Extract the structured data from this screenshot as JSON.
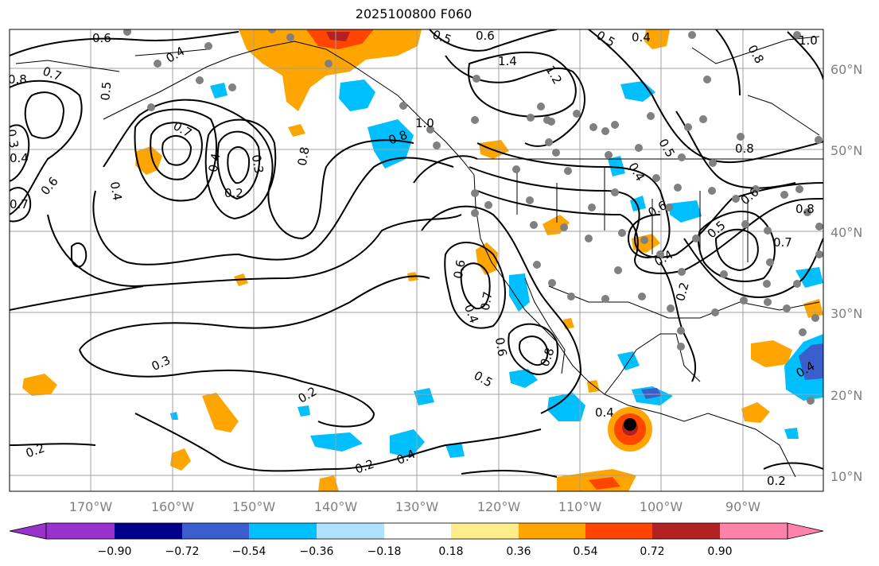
{
  "title": "2025100800 F060",
  "latitude_labels": [
    "60°N",
    "50°N",
    "40°N",
    "30°N",
    "20°N",
    "10°N"
  ],
  "longitude_labels": [
    "170°W",
    "160°W",
    "150°W",
    "140°W",
    "130°W",
    "120°W",
    "110°W",
    "100°W",
    "90°W"
  ],
  "colorbar": {
    "colors": [
      "#9932cc",
      "#00008b",
      "#3a5fcd",
      "#00bfff",
      "#b0e2ff",
      "#ffffff",
      "#ffec8b",
      "#ffa500",
      "#ff4500",
      "#b22222",
      "#ff82ab"
    ],
    "tick_labels": [
      "−0.90",
      "−0.72",
      "−0.54",
      "−0.36",
      "−0.18",
      "0.18",
      "0.36",
      "0.54",
      "0.72",
      "0.90"
    ]
  },
  "contour_labels": [
    "0.6",
    "0.4",
    "0.8",
    "0.7",
    "0.5",
    "0.3",
    "0.4",
    "0.7",
    "0.6",
    "0.4",
    "0.7",
    "0.2",
    "0.4",
    "0.3",
    "0.8",
    "0.8",
    "1.0",
    "0.5",
    "0.6",
    "0.5",
    "0.4",
    "1.4",
    "1.2",
    "0.8",
    "0.5",
    "0.4",
    "0.6",
    "0.8",
    "0.5",
    "0.7",
    "0.6",
    "0.4",
    "0.6",
    "0.8",
    "0.2",
    "0.4",
    "0.7",
    "0.3",
    "0.5",
    "0.8",
    "0.6",
    "0.4",
    "0.2",
    "0.2",
    "0.2",
    "0.2",
    "0.4",
    "0.4",
    "1.0"
  ],
  "hurricane_marker": "circle-marker",
  "colors": {
    "contour": "#000000",
    "coast": "#000000",
    "grid": "#a0a0a0",
    "station": "#808080",
    "label": "#808080"
  }
}
